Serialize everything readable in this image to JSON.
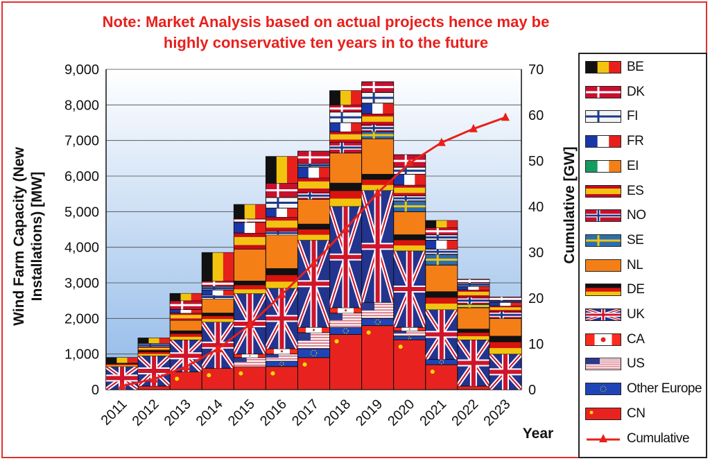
{
  "note": {
    "line1": "Note: Market Analysis based on actual projects hence may be",
    "line2": "highly conservative ten years in to the future"
  },
  "chart_data": {
    "type": "bar",
    "stacked": true,
    "categories": [
      "2011",
      "2012",
      "2013",
      "2014",
      "2015",
      "2016",
      "2017",
      "2018",
      "2019",
      "2020",
      "2021",
      "2022",
      "2023"
    ],
    "ylabel": "Wind Farm Capacity (New Installations) [MW]",
    "y2label": "Cumulative [GW]",
    "xlabel": "Year",
    "ylim": [
      0,
      9000
    ],
    "y2lim": [
      0,
      70
    ],
    "yticks": [
      "0",
      "1,000",
      "2,000",
      "3,000",
      "4,000",
      "5,000",
      "6,000",
      "7,000",
      "8,000",
      "9,000"
    ],
    "y2ticks": [
      "0",
      "10",
      "20",
      "30",
      "40",
      "50",
      "60",
      "70"
    ],
    "series": [
      {
        "name": "CN",
        "color": "#e8231f",
        "values": [
          0,
          100,
          500,
          600,
          650,
          650,
          900,
          1550,
          1800,
          1400,
          700,
          100,
          0
        ]
      },
      {
        "name": "Other Europe",
        "color": "#1f44b8",
        "values": [
          0,
          0,
          0,
          0,
          0,
          150,
          250,
          200,
          200,
          100,
          150,
          0,
          0
        ]
      },
      {
        "name": "US",
        "color": "#d97a88",
        "values": [
          0,
          0,
          0,
          0,
          250,
          200,
          450,
          400,
          450,
          150,
          0,
          0,
          0
        ]
      },
      {
        "name": "CA",
        "color": "#ff2a1e",
        "values": [
          0,
          0,
          0,
          0,
          100,
          150,
          150,
          150,
          0,
          100,
          0,
          0,
          0
        ]
      },
      {
        "name": "UK",
        "color": "#23348f",
        "values": [
          650,
          850,
          900,
          1300,
          1700,
          1700,
          2450,
          2850,
          3150,
          2150,
          1400,
          1300,
          1000
        ]
      },
      {
        "name": "DE",
        "color": "#d8140e",
        "values": [
          100,
          150,
          250,
          250,
          350,
          550,
          450,
          650,
          450,
          450,
          500,
          300,
          500
        ]
      },
      {
        "name": "NL",
        "color": "#f57f17",
        "values": [
          0,
          0,
          300,
          400,
          900,
          950,
          700,
          850,
          1000,
          650,
          750,
          600,
          500
        ]
      },
      {
        "name": "SE",
        "color": "#2a6fb0",
        "values": [
          0,
          0,
          0,
          0,
          0,
          0,
          0,
          0,
          200,
          300,
          300,
          100,
          0
        ]
      },
      {
        "name": "NO",
        "color": "#c8102e",
        "values": [
          0,
          0,
          0,
          100,
          0,
          100,
          200,
          300,
          200,
          150,
          150,
          200,
          200
        ]
      },
      {
        "name": "ES",
        "color": "#f3c312",
        "values": [
          0,
          100,
          200,
          0,
          450,
          400,
          400,
          300,
          300,
          300,
          0,
          200,
          150
        ]
      },
      {
        "name": "EI",
        "color": "#169b62",
        "values": [
          0,
          0,
          0,
          0,
          0,
          0,
          0,
          0,
          0,
          0,
          0,
          0,
          0
        ]
      },
      {
        "name": "FR",
        "color": "#1a37a8",
        "values": [
          0,
          0,
          100,
          150,
          300,
          250,
          300,
          250,
          300,
          300,
          250,
          100,
          100
        ]
      },
      {
        "name": "FI",
        "color": "#f4f4f4",
        "values": [
          0,
          100,
          0,
          100,
          0,
          300,
          100,
          300,
          300,
          200,
          150,
          100,
          50
        ]
      },
      {
        "name": "DK",
        "color": "#c8102e",
        "values": [
          0,
          0,
          250,
          150,
          100,
          400,
          350,
          200,
          300,
          350,
          200,
          100,
          100
        ]
      },
      {
        "name": "BE",
        "color": "#111111",
        "values": [
          150,
          150,
          200,
          800,
          400,
          750,
          0,
          400,
          0,
          0,
          200,
          0,
          0
        ]
      }
    ],
    "cumulative": {
      "name": "Cumulative",
      "color": "#e8201c",
      "values": [
        0.8,
        2.3,
        5.0,
        8.9,
        14.2,
        20.8,
        27.6,
        35.1,
        43.0,
        49.5,
        54.0,
        57.0,
        59.5
      ]
    },
    "legend_placement": "right",
    "grid": true
  }
}
